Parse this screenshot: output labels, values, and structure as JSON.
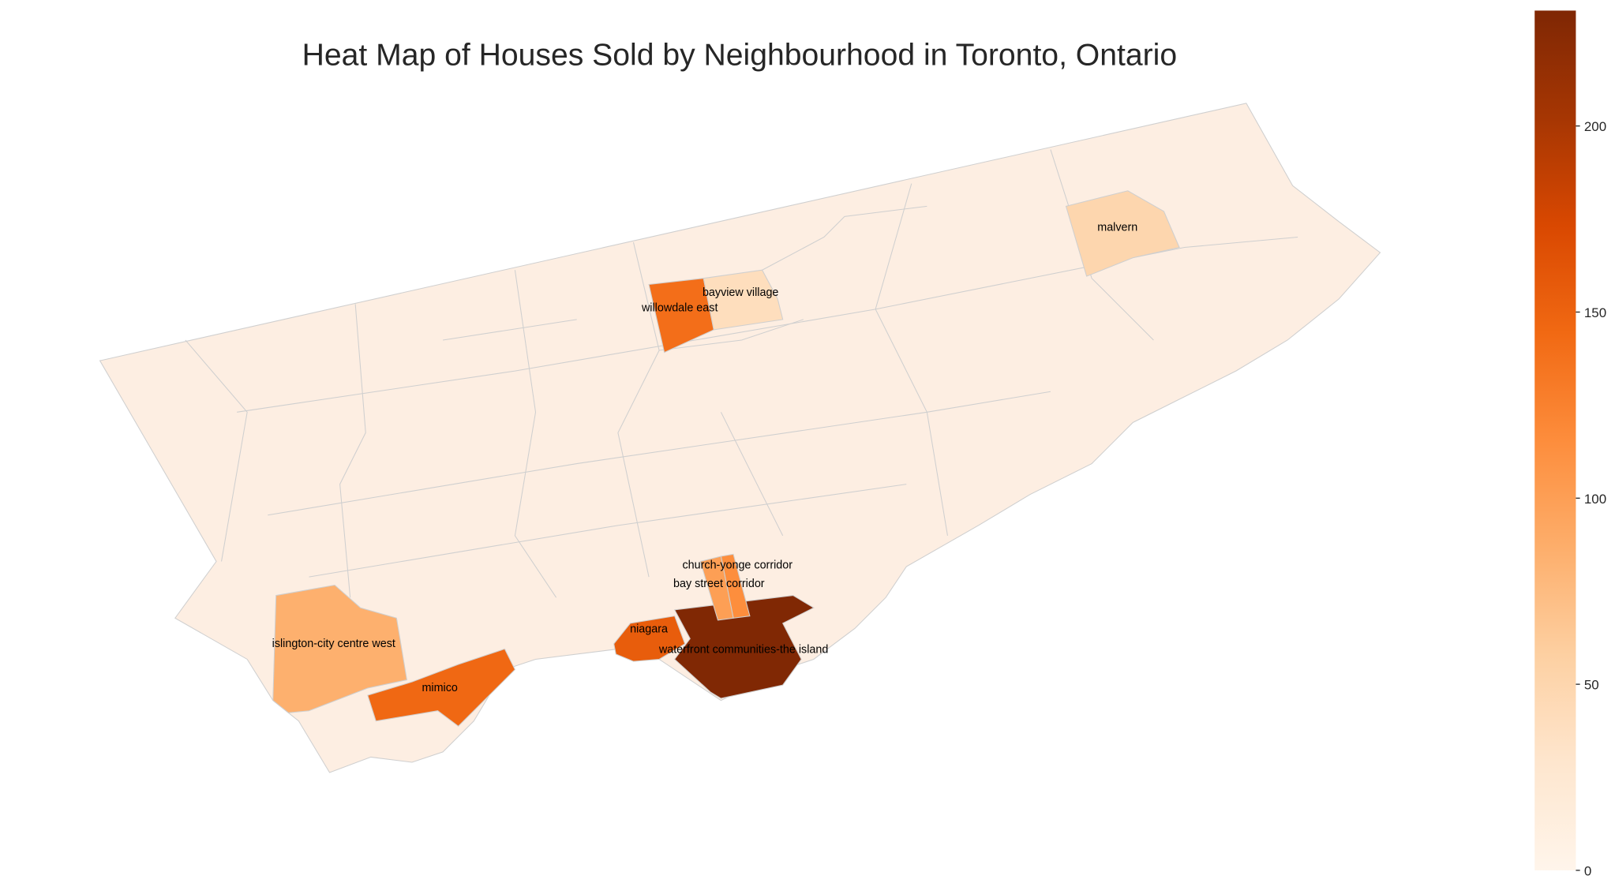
{
  "chart_data": {
    "type": "choropleth",
    "title": "Heat Map of Houses Sold by Neighbourhood in Toronto, Ontario",
    "colormap": "Oranges",
    "colorbar": {
      "range": [
        0,
        231
      ],
      "ticks": [
        0,
        50,
        100,
        150,
        200
      ],
      "placement": "right"
    },
    "base_color": "#fdeee2",
    "border_color": "#cfcfcf",
    "neighbourhoods": [
      {
        "name": "waterfront communities-the island",
        "value": 230
      },
      {
        "name": "niagara",
        "value": 155
      },
      {
        "name": "mimico",
        "value": 145
      },
      {
        "name": "willowdale east",
        "value": 140
      },
      {
        "name": "church-yonge corridor",
        "value": 115
      },
      {
        "name": "bay street corridor",
        "value": 100
      },
      {
        "name": "islington-city centre west",
        "value": 85
      },
      {
        "name": "malvern",
        "value": 50
      },
      {
        "name": "bayview village",
        "value": 40
      }
    ]
  }
}
